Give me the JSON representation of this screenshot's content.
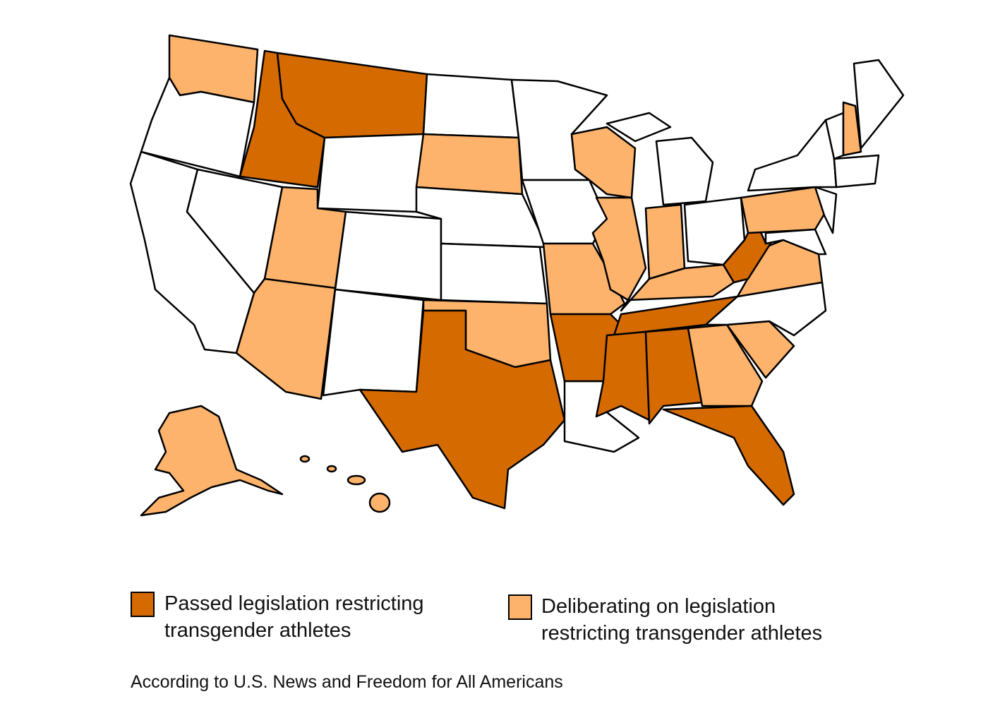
{
  "legend": [
    {
      "label": "Passed legislation restricting transgender athletes",
      "color": "#d46a00"
    },
    {
      "label": "Deliberating on legislation restricting transgender athletes",
      "color": "#fdb36b"
    }
  ],
  "note": "According to U.S. News and Freedom for All Americans"
}
